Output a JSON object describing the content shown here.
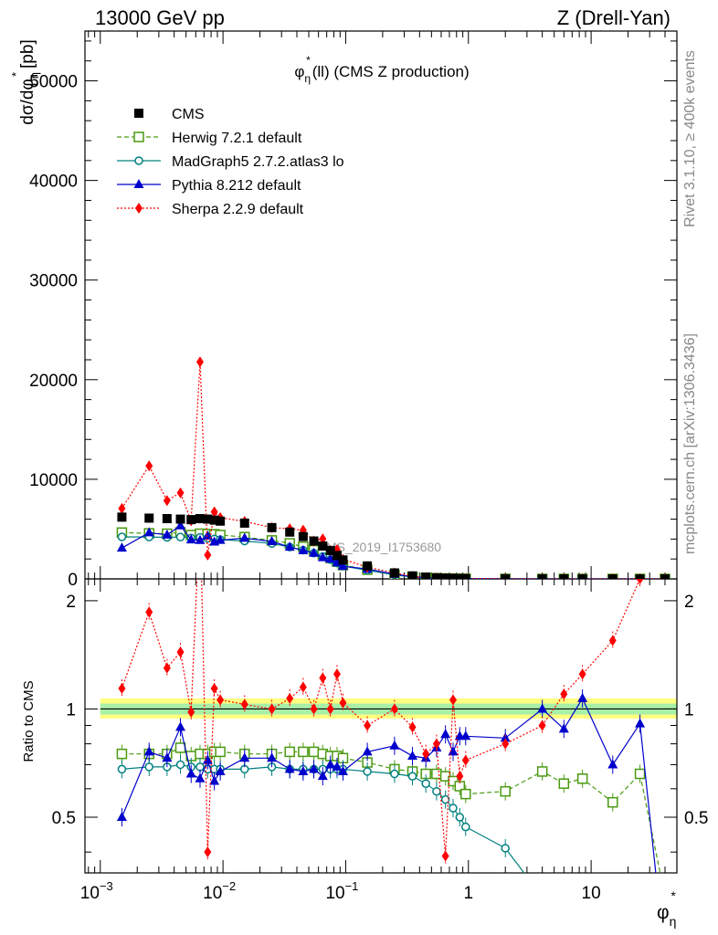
{
  "header": {
    "left": "13000 GeV pp",
    "right": "Z (Drell-Yan)"
  },
  "side": {
    "rivet": "Rivet 3.1.10, ≥ 400k events",
    "mcplots": "mcplots.cern.ch [arXiv:1306.3436]"
  },
  "chart_data": {
    "type": "scatter",
    "title_main": "φ",
    "title_sub": "η",
    "title_sup": "*",
    "title_rest": "(ll) (CMS Z production)",
    "watermark": "CMS_2019_I1753680",
    "ylabel": "dσ/dφ",
    "ylabel_sub": "η",
    "ylabel_sup": "*",
    "ylabel_unit": "[pb]",
    "ratio_ylabel": "Ratio to CMS",
    "xlabel_main": "φ",
    "xlabel_sub": "η",
    "xlabel_sup": "*",
    "x_scale": "log",
    "xlim": [
      0.00075,
      50
    ],
    "ylim": [
      0,
      55000
    ],
    "ratio_ylim": [
      0.35,
      2.3
    ],
    "x_ticks": [
      {
        "v": 0.001,
        "base": "10",
        "exp": "−3"
      },
      {
        "v": 0.01,
        "base": "10",
        "exp": "−2"
      },
      {
        "v": 0.1,
        "base": "10",
        "exp": "−1"
      },
      {
        "v": 1,
        "base": "1",
        "exp": ""
      },
      {
        "v": 10,
        "base": "10",
        "exp": ""
      }
    ],
    "y_ticks": [
      {
        "v": 0,
        "label": "0"
      },
      {
        "v": 10000,
        "label": "10000"
      },
      {
        "v": 20000,
        "label": "20000"
      },
      {
        "v": 30000,
        "label": "30000"
      },
      {
        "v": 40000,
        "label": "40000"
      },
      {
        "v": 50000,
        "label": "50000"
      }
    ],
    "ratio_ticks": [
      {
        "v": 0.5,
        "label": "0.5"
      },
      {
        "v": 1,
        "label": "1"
      },
      {
        "v": 2,
        "label": "2"
      }
    ],
    "legend_position": "top-left",
    "x": [
      0.0015,
      0.0025,
      0.0035,
      0.0045,
      0.0055,
      0.0065,
      0.0075,
      0.0085,
      0.0095,
      0.015,
      0.025,
      0.035,
      0.045,
      0.055,
      0.065,
      0.075,
      0.085,
      0.095,
      0.15,
      0.25,
      0.35,
      0.45,
      0.55,
      0.65,
      0.75,
      0.85,
      0.95,
      2.0,
      4.0,
      6.0,
      8.5,
      15.0,
      25.0,
      40.0
    ],
    "series": [
      {
        "name": "CMS",
        "color": "#000000",
        "marker": "square-filled",
        "line": "none",
        "values": [
          6200,
          6100,
          6050,
          6000,
          5950,
          6050,
          6000,
          5900,
          5800,
          5600,
          5150,
          4700,
          4250,
          3800,
          3300,
          2850,
          2350,
          1900,
          1300,
          600,
          300,
          180,
          110,
          75,
          55,
          40,
          30,
          10,
          3,
          2,
          1,
          0.5,
          0.3,
          0.1
        ]
      },
      {
        "name": "Herwig 7.2.1 default",
        "color": "#4a9a10",
        "marker": "square-open",
        "line": "dashed",
        "ratio": [
          0.75,
          0.75,
          0.75,
          0.78,
          0.74,
          0.75,
          0.75,
          0.76,
          0.76,
          0.75,
          0.75,
          0.76,
          0.76,
          0.76,
          0.75,
          0.74,
          0.74,
          0.73,
          0.71,
          0.68,
          0.67,
          0.66,
          0.66,
          0.65,
          0.63,
          0.61,
          0.58,
          0.59,
          0.67,
          0.62,
          0.64,
          0.55,
          0.66,
          0.3
        ]
      },
      {
        "name": "MadGraph5 2.7.2.atlas3 lo",
        "color": "#008080",
        "marker": "circle-open",
        "line": "solid",
        "ratio": [
          0.68,
          0.69,
          0.69,
          0.7,
          0.69,
          0.69,
          0.68,
          0.68,
          0.68,
          0.68,
          0.69,
          0.68,
          0.68,
          0.68,
          0.68,
          0.68,
          0.68,
          0.68,
          0.67,
          0.66,
          0.65,
          0.62,
          0.59,
          0.56,
          0.53,
          0.5,
          0.47,
          0.41,
          0.3,
          0.28,
          0.26,
          0.24,
          0.22,
          0.2
        ]
      },
      {
        "name": "Pythia 8.212 default",
        "color": "#0000cc",
        "marker": "triangle-filled",
        "line": "solid",
        "ratio": [
          0.5,
          0.76,
          0.73,
          0.89,
          0.66,
          0.64,
          0.72,
          0.63,
          0.67,
          0.73,
          0.73,
          0.68,
          0.67,
          0.68,
          0.65,
          0.7,
          0.69,
          0.67,
          0.76,
          0.79,
          0.74,
          0.73,
          0.78,
          0.85,
          0.76,
          0.84,
          0.84,
          0.83,
          1.0,
          0.88,
          1.07,
          0.7,
          0.91,
          0.2
        ]
      },
      {
        "name": "Sherpa 2.2.9 default",
        "color": "#ff0000",
        "marker": "diamond-filled",
        "line": "dotted",
        "ratio": [
          1.14,
          1.86,
          1.3,
          1.44,
          0.98,
          3.6,
          0.4,
          1.14,
          1.06,
          1.03,
          1.0,
          1.07,
          1.15,
          1.0,
          1.22,
          1.0,
          1.25,
          1.04,
          0.9,
          1.0,
          0.89,
          0.75,
          0.8,
          0.39,
          1.06,
          0.65,
          0.72,
          0.8,
          0.9,
          1.1,
          1.25,
          1.55,
          2.3,
          3.5
        ]
      }
    ]
  }
}
